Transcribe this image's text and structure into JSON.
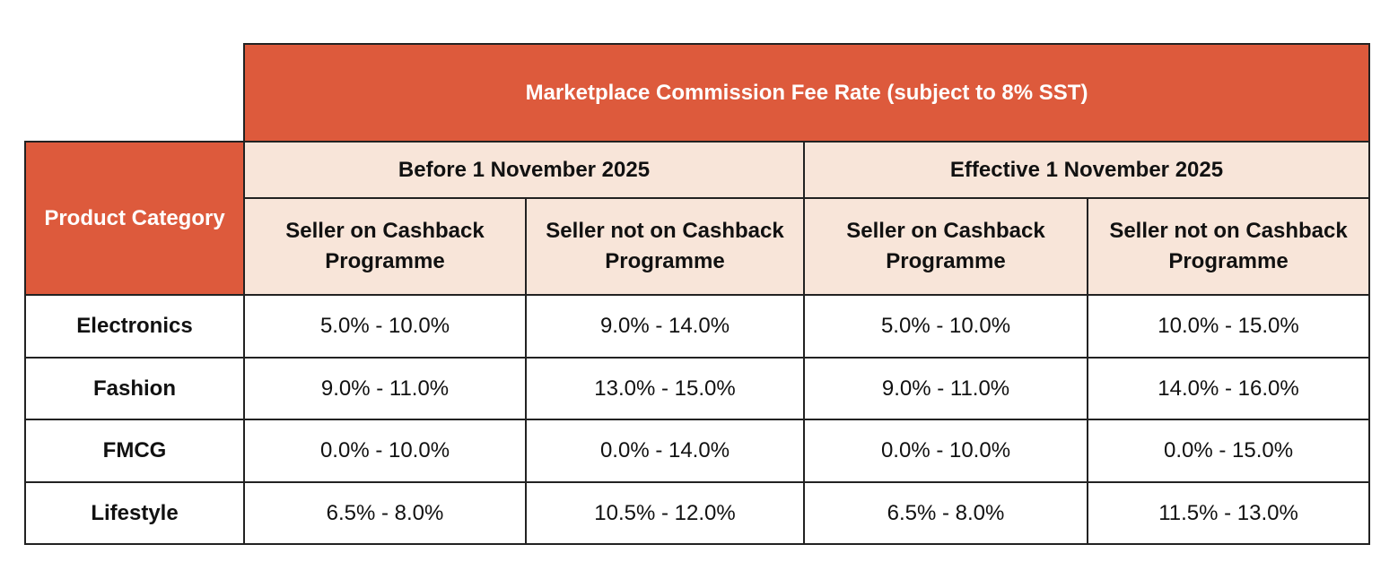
{
  "title": "Marketplace Commission Fee Rate (subject to 8% SST)",
  "category_header": "Product Category",
  "periods": [
    "Before 1 November 2025",
    "Effective 1 November 2025"
  ],
  "sub_headers": [
    "Seller on Cashback Programme",
    "Seller not on Cashback Programme",
    "Seller on Cashback Programme",
    "Seller not on Cashback Programme"
  ],
  "rows": [
    {
      "category": "Electronics",
      "values": [
        "5.0% - 10.0%",
        "9.0% - 14.0%",
        "5.0% - 10.0%",
        "10.0% - 15.0%"
      ]
    },
    {
      "category": "Fashion",
      "values": [
        "9.0% - 11.0%",
        "13.0% - 15.0%",
        "9.0% - 11.0%",
        "14.0% - 16.0%"
      ]
    },
    {
      "category": "FMCG",
      "values": [
        "0.0% - 10.0%",
        "0.0% - 14.0%",
        "0.0% - 10.0%",
        "0.0% - 15.0%"
      ]
    },
    {
      "category": "Lifestyle",
      "values": [
        "6.5% - 8.0%",
        "10.5% - 12.0%",
        "6.5% - 8.0%",
        "11.5% - 13.0%"
      ]
    }
  ],
  "colors": {
    "header_red": "#DD5A3C",
    "header_peach": "#F8E5D9"
  }
}
